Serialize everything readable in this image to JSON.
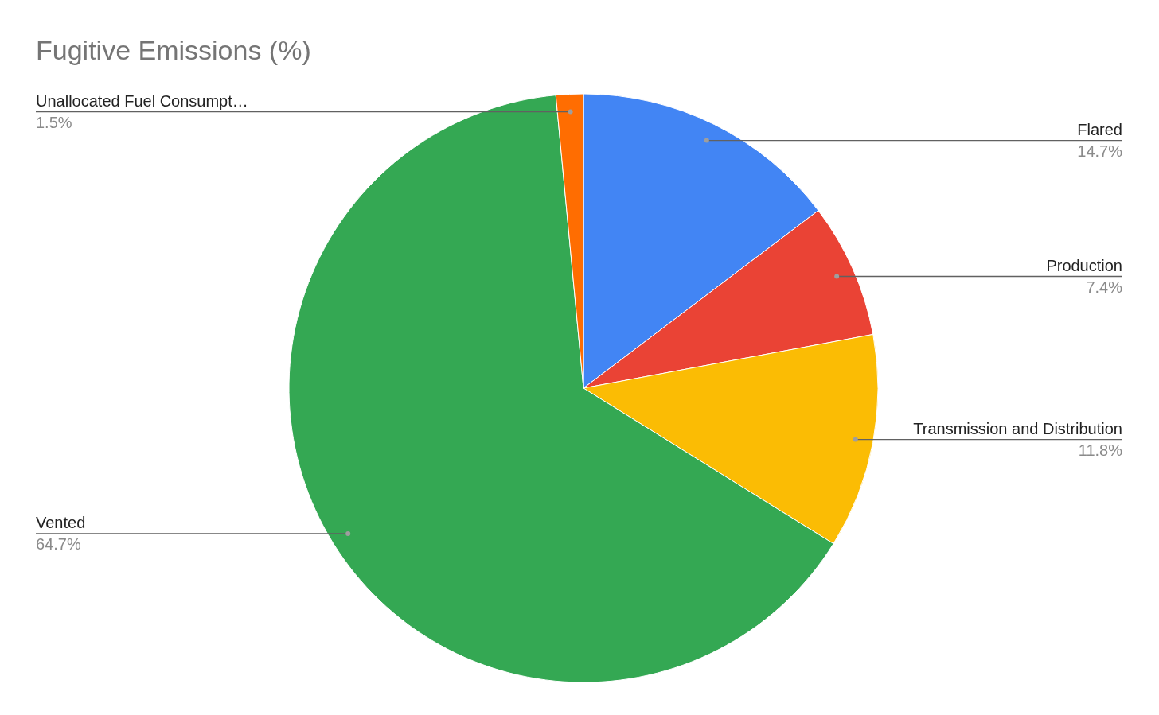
{
  "chart_data": {
    "type": "pie",
    "title": "Fugitive Emissions (%)",
    "categories": [
      "Flared",
      "Production",
      "Transmission and Distribution",
      "Vented",
      "Unallocated Fuel Consumpt…"
    ],
    "values": [
      14.7,
      7.4,
      11.8,
      64.7,
      1.5
    ],
    "colors": [
      "#4285f4",
      "#ea4335",
      "#fbbc04",
      "#34a853",
      "#ff6d01"
    ],
    "value_labels": [
      "14.7%",
      "7.4%",
      "11.8%",
      "64.7%",
      "1.5%"
    ]
  }
}
